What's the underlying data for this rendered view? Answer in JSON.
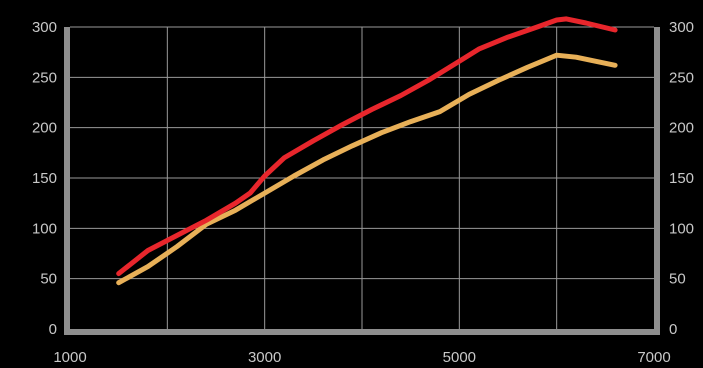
{
  "chart_data": {
    "type": "line",
    "title": "",
    "xlabel": "",
    "ylabel": "",
    "xlim": [
      1000,
      7000
    ],
    "ylim": [
      0,
      300
    ],
    "grid": true,
    "x_tick_labels": [
      "1000",
      "3000",
      "5000",
      "7000"
    ],
    "y_tick_labels": [
      "0",
      "50",
      "100",
      "150",
      "200",
      "250",
      "300"
    ],
    "series": [
      {
        "color": "#e8262c",
        "x": [
          1500,
          1800,
          2100,
          2400,
          2700,
          2850,
          3000,
          3200,
          3500,
          3800,
          4100,
          4400,
          4700,
          5000,
          5200,
          5500,
          5800,
          6000,
          6100,
          6300,
          6600
        ],
        "y": [
          55,
          78,
          93,
          108,
          125,
          135,
          152,
          170,
          187,
          203,
          218,
          232,
          248,
          266,
          278,
          290,
          300,
          307,
          308,
          304,
          297
        ]
      },
      {
        "color": "#e8b058",
        "x": [
          1500,
          1800,
          2100,
          2400,
          2700,
          3000,
          3300,
          3600,
          3900,
          4200,
          4500,
          4800,
          5100,
          5400,
          5700,
          6000,
          6200,
          6600
        ],
        "y": [
          46,
          62,
          82,
          104,
          118,
          135,
          152,
          168,
          182,
          195,
          206,
          216,
          233,
          247,
          260,
          272,
          270,
          262
        ]
      }
    ]
  }
}
